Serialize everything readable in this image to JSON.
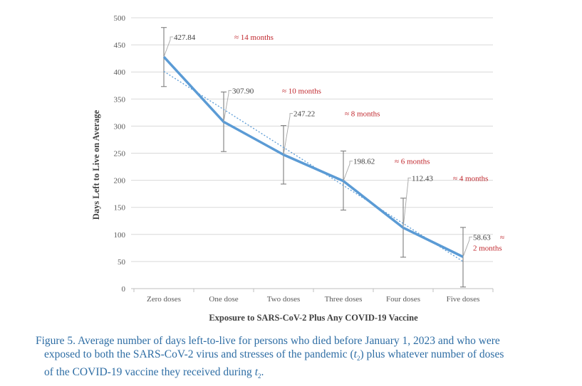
{
  "chart_data": {
    "type": "line",
    "title": "",
    "xlabel": "Exposure to SARS-CoV-2 Plus Any COVID-19 Vaccine",
    "ylabel": "Days Left to Live on Average",
    "ylim": [
      0,
      500
    ],
    "yticks": [
      0,
      50,
      100,
      150,
      200,
      250,
      300,
      350,
      400,
      450,
      500
    ],
    "grid": true,
    "legend": "none",
    "categories": [
      "Zero doses",
      "One dose",
      "Two doses",
      "Three doses",
      "Four doses",
      "Five doses"
    ],
    "series": [
      {
        "name": "Average days left-to-live",
        "color": "#5b9bd5",
        "values": [
          427.84,
          307.9,
          247.22,
          198.62,
          112.43,
          58.63
        ],
        "error_low": [
          373,
          253,
          193,
          145,
          58,
          3
        ],
        "error_high": [
          482,
          363,
          301,
          254,
          167,
          113
        ]
      }
    ],
    "trendline": {
      "type": "linear",
      "style": "dotted",
      "color": "#5b9bd5",
      "start": 401,
      "end": 50
    },
    "data_labels": [
      "427.84",
      "307.90",
      "247.22",
      "198.62",
      "112.43",
      "58.63"
    ],
    "annotations": [
      "≈ 14 months",
      "≈ 10 months",
      "≈ 8 months",
      "≈ 6 months",
      "≈ 4 months",
      "≈ 2 months"
    ],
    "annotation_color": "#c0272d"
  },
  "caption": {
    "line1": "Figure 5. Average number of days left-to-live for persons who died before January 1, 2023 and who were",
    "line2a": "exposed to both the SARS-CoV-2 virus and stresses of the pandemic (",
    "t_var": "t",
    "t_sub": "2",
    "line2b": ") plus whatever number of doses",
    "line3a": "of the COVID-19 vaccine they received during ",
    "line3b": "."
  }
}
